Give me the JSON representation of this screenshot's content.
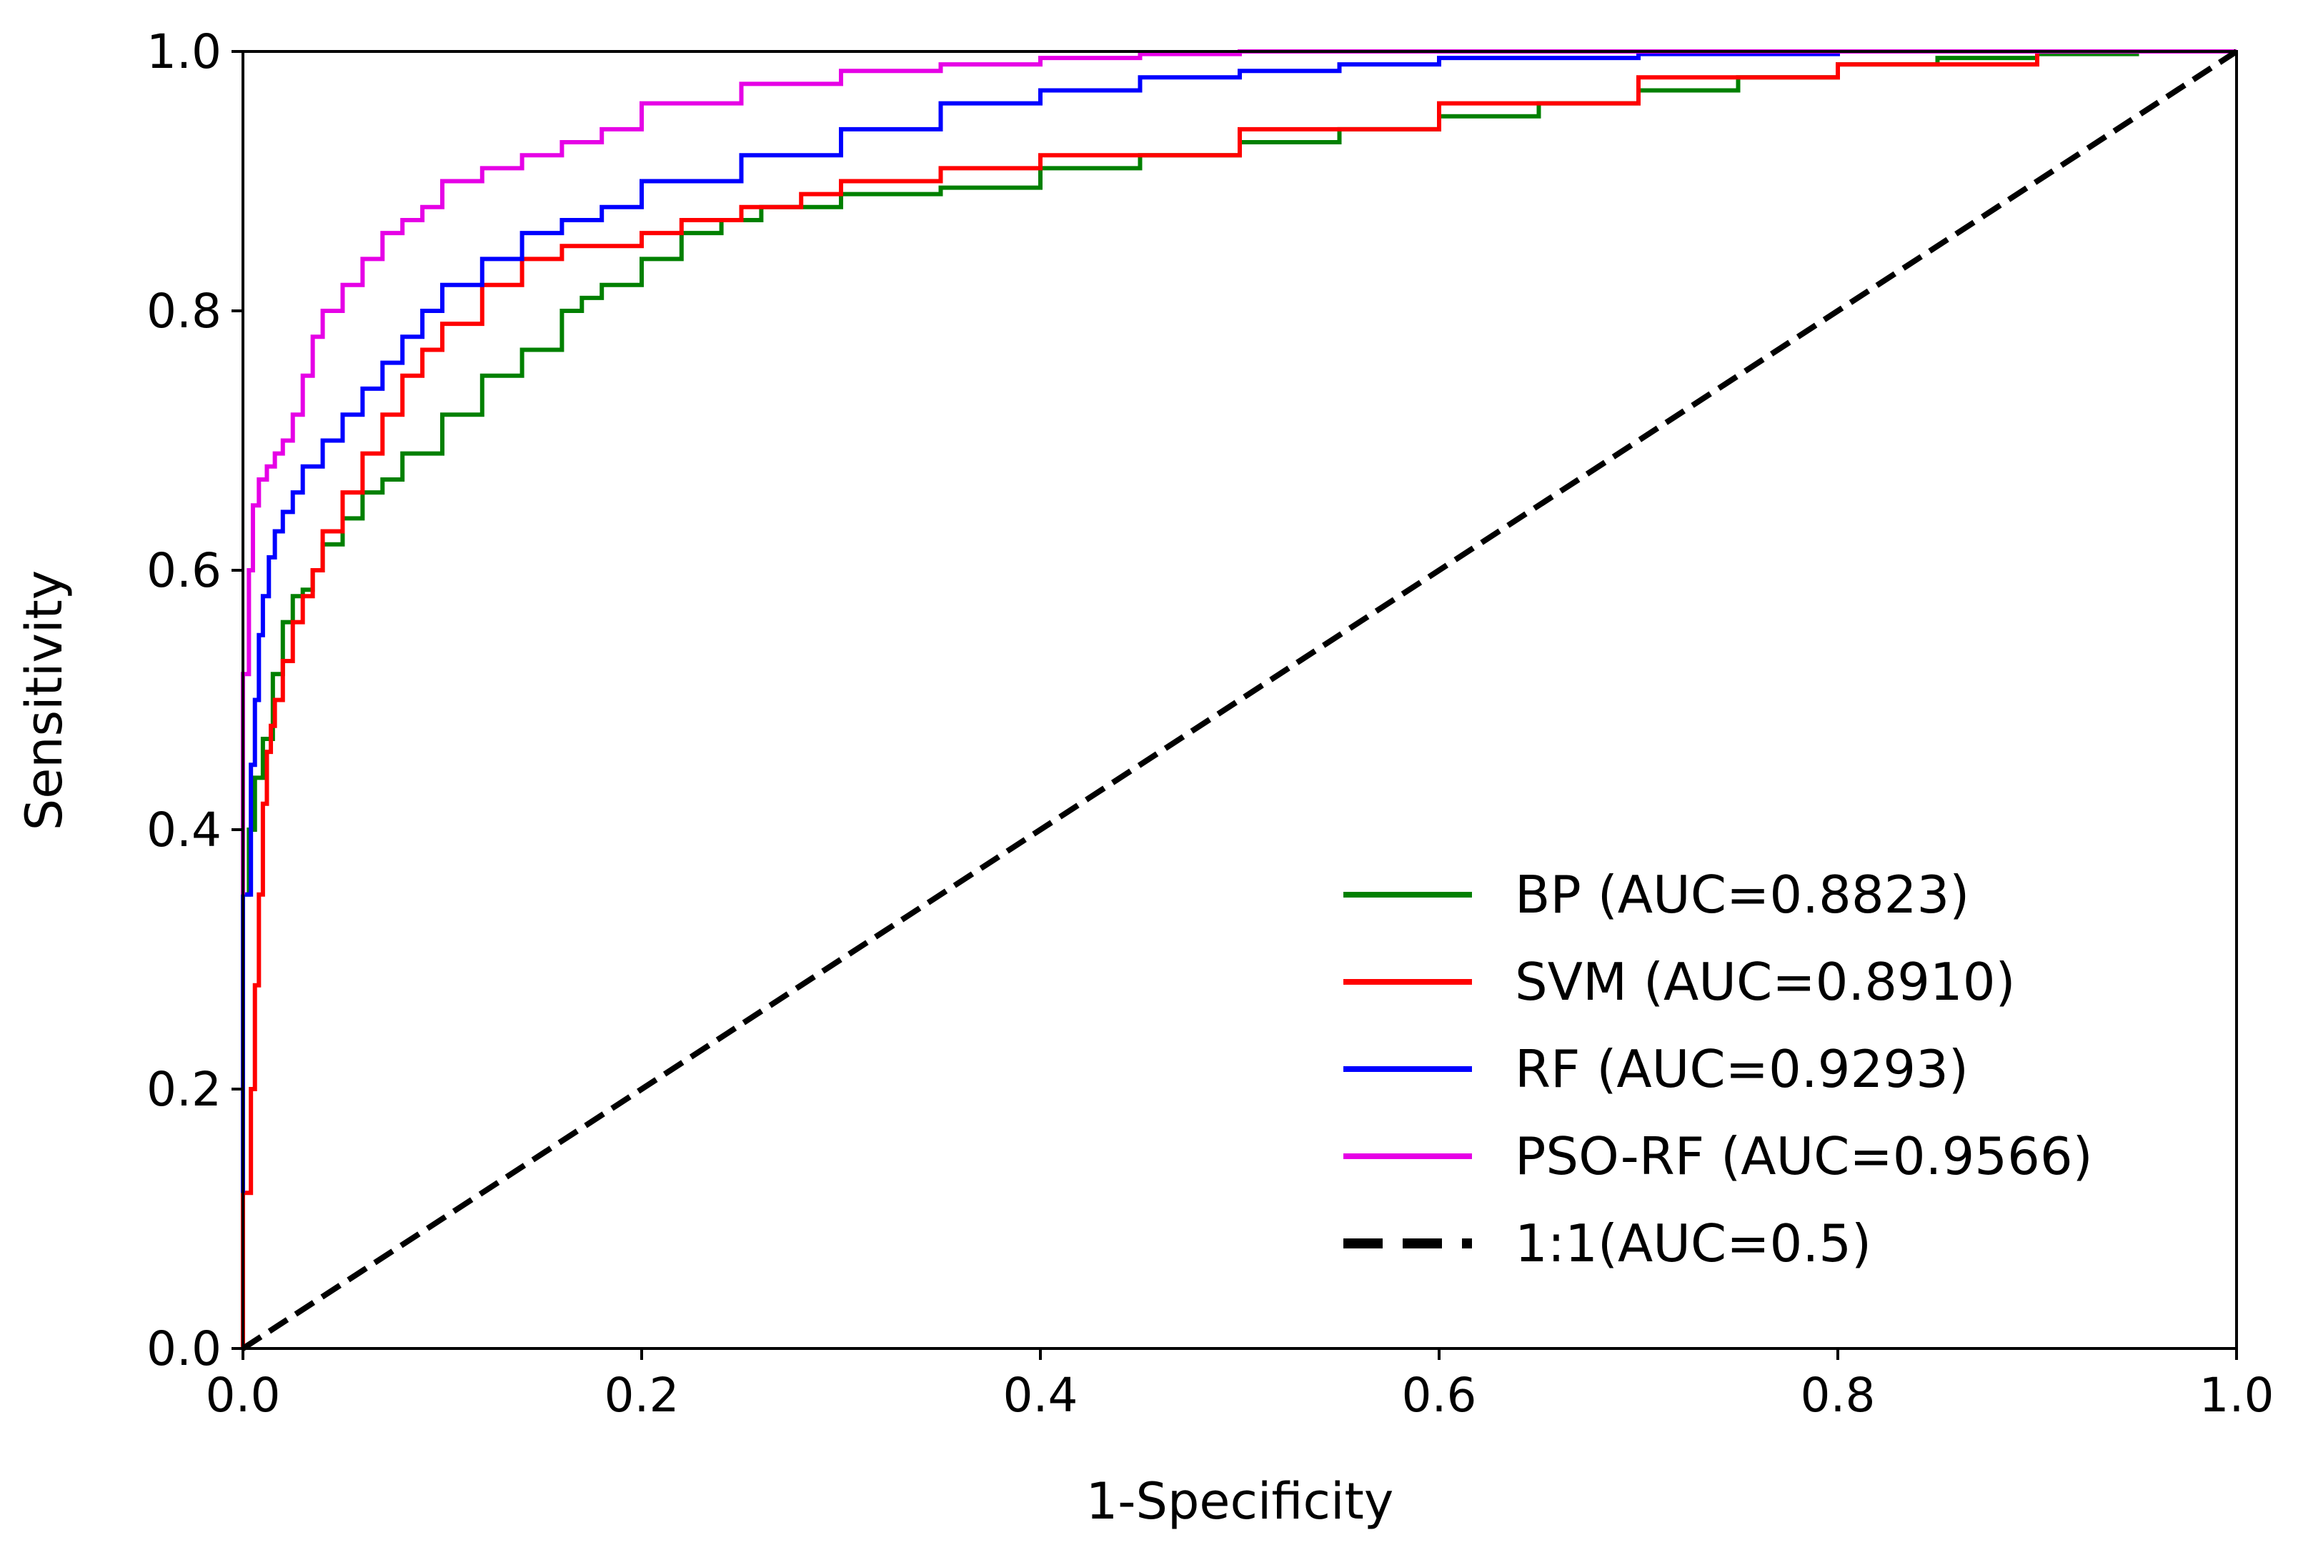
{
  "chart_data": {
    "type": "line",
    "title": "",
    "xlabel": "1-Specificity",
    "ylabel": "Sensitivity",
    "xlim": [
      0.0,
      1.0
    ],
    "ylim": [
      0.0,
      1.0
    ],
    "xticks": [
      "0.0",
      "0.2",
      "0.4",
      "0.6",
      "0.8",
      "1.0"
    ],
    "yticks": [
      "0.0",
      "0.2",
      "0.4",
      "0.6",
      "0.8",
      "1.0"
    ],
    "grid": false,
    "legend_position": "lower-right",
    "series": [
      {
        "name": "BP (AUC=0.8823)",
        "color": "#008000",
        "dash": "solid",
        "x": [
          0.0,
          0.003,
          0.006,
          0.01,
          0.015,
          0.02,
          0.025,
          0.03,
          0.035,
          0.04,
          0.05,
          0.06,
          0.07,
          0.08,
          0.1,
          0.12,
          0.14,
          0.16,
          0.17,
          0.18,
          0.2,
          0.22,
          0.24,
          0.26,
          0.28,
          0.3,
          0.35,
          0.4,
          0.45,
          0.5,
          0.55,
          0.6,
          0.65,
          0.7,
          0.75,
          0.8,
          0.85,
          0.9,
          0.95,
          1.0
        ],
        "y": [
          0.2,
          0.35,
          0.4,
          0.44,
          0.47,
          0.52,
          0.56,
          0.58,
          0.585,
          0.6,
          0.62,
          0.64,
          0.66,
          0.67,
          0.69,
          0.72,
          0.75,
          0.77,
          0.8,
          0.81,
          0.82,
          0.84,
          0.86,
          0.87,
          0.88,
          0.88,
          0.89,
          0.895,
          0.91,
          0.92,
          0.93,
          0.94,
          0.95,
          0.96,
          0.97,
          0.98,
          0.99,
          0.995,
          0.998,
          1.0
        ]
      },
      {
        "name": "SVM (AUC=0.8910)",
        "color": "#ff0000",
        "dash": "solid",
        "x": [
          0.0,
          0.004,
          0.006,
          0.008,
          0.01,
          0.012,
          0.014,
          0.016,
          0.02,
          0.025,
          0.03,
          0.035,
          0.04,
          0.05,
          0.06,
          0.07,
          0.08,
          0.09,
          0.1,
          0.12,
          0.14,
          0.16,
          0.18,
          0.2,
          0.22,
          0.25,
          0.28,
          0.3,
          0.35,
          0.4,
          0.5,
          0.6,
          0.7,
          0.8,
          0.9,
          1.0
        ],
        "y": [
          0.0,
          0.12,
          0.2,
          0.28,
          0.35,
          0.42,
          0.46,
          0.48,
          0.5,
          0.53,
          0.56,
          0.58,
          0.6,
          0.63,
          0.66,
          0.69,
          0.72,
          0.75,
          0.77,
          0.79,
          0.82,
          0.84,
          0.85,
          0.85,
          0.86,
          0.87,
          0.88,
          0.89,
          0.9,
          0.91,
          0.92,
          0.94,
          0.96,
          0.98,
          0.99,
          1.0
        ]
      },
      {
        "name": "RF (AUC=0.9293)",
        "color": "#0000ff",
        "dash": "solid",
        "x": [
          0.0,
          0.004,
          0.006,
          0.008,
          0.01,
          0.013,
          0.016,
          0.02,
          0.025,
          0.03,
          0.04,
          0.05,
          0.06,
          0.07,
          0.08,
          0.09,
          0.1,
          0.12,
          0.14,
          0.16,
          0.18,
          0.2,
          0.25,
          0.3,
          0.35,
          0.4,
          0.45,
          0.5,
          0.55,
          0.6,
          0.7,
          0.8,
          0.9,
          1.0
        ],
        "y": [
          0.12,
          0.35,
          0.45,
          0.5,
          0.55,
          0.58,
          0.61,
          0.63,
          0.645,
          0.66,
          0.68,
          0.7,
          0.72,
          0.74,
          0.76,
          0.78,
          0.8,
          0.82,
          0.84,
          0.86,
          0.87,
          0.88,
          0.9,
          0.92,
          0.94,
          0.96,
          0.97,
          0.98,
          0.985,
          0.99,
          0.995,
          0.998,
          1.0,
          1.0
        ]
      },
      {
        "name": "PSO-RF (AUC=0.9566)",
        "color": "#e600e6",
        "dash": "solid",
        "x": [
          0.0,
          0.003,
          0.005,
          0.008,
          0.012,
          0.016,
          0.02,
          0.025,
          0.03,
          0.035,
          0.04,
          0.05,
          0.06,
          0.07,
          0.08,
          0.09,
          0.1,
          0.12,
          0.14,
          0.16,
          0.18,
          0.2,
          0.25,
          0.3,
          0.35,
          0.4,
          0.45,
          0.5,
          0.6,
          0.7,
          0.8,
          0.9,
          1.0
        ],
        "y": [
          0.35,
          0.52,
          0.6,
          0.65,
          0.67,
          0.68,
          0.69,
          0.7,
          0.72,
          0.75,
          0.78,
          0.8,
          0.82,
          0.84,
          0.86,
          0.87,
          0.88,
          0.9,
          0.91,
          0.92,
          0.93,
          0.94,
          0.96,
          0.975,
          0.985,
          0.99,
          0.995,
          0.998,
          1.0,
          1.0,
          1.0,
          1.0,
          1.0
        ]
      },
      {
        "name": "1:1(AUC=0.5)",
        "color": "#000000",
        "dash": "dashed",
        "x": [
          0.0,
          1.0
        ],
        "y": [
          0.0,
          1.0
        ]
      }
    ]
  }
}
